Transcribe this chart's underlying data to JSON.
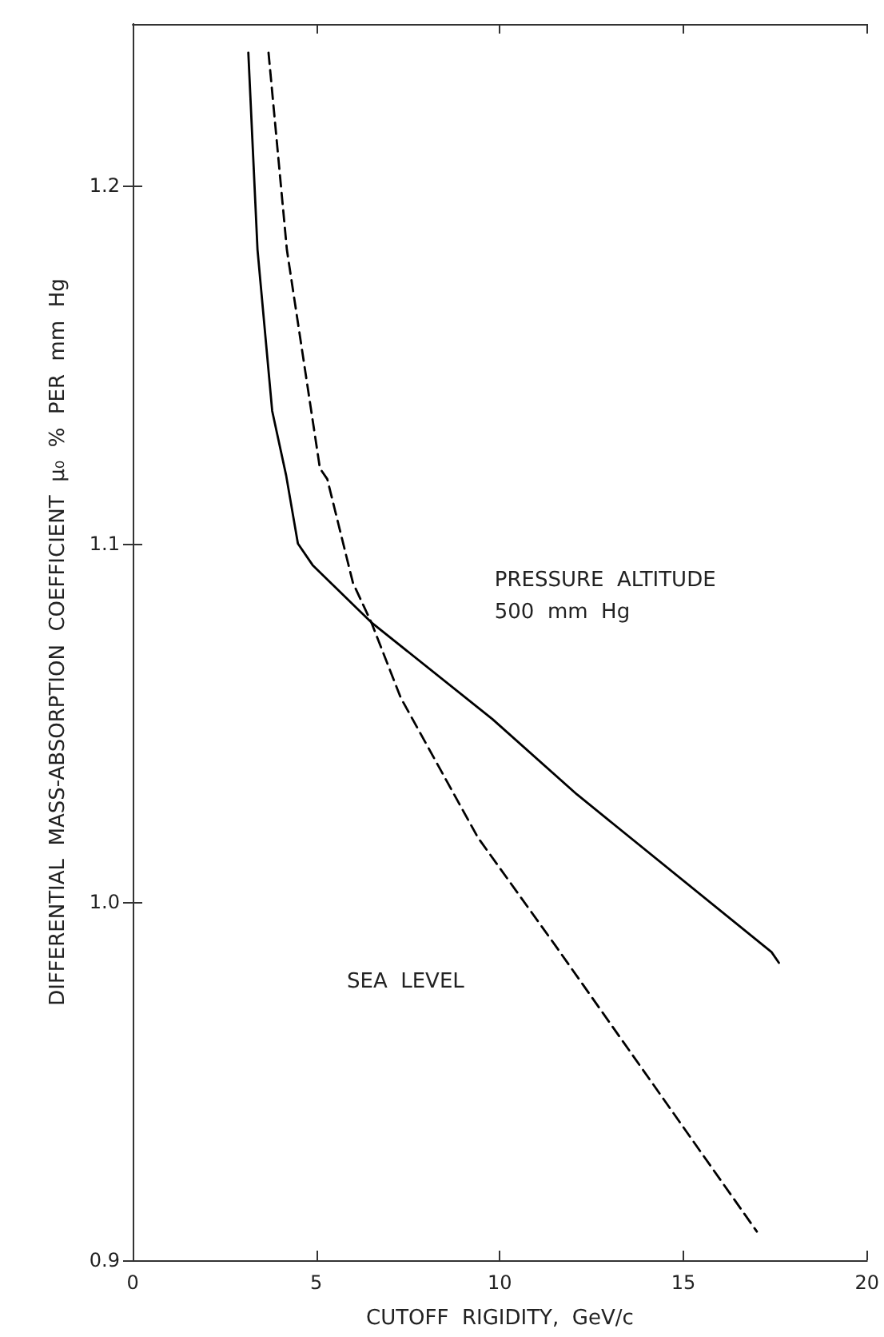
{
  "chart_data": {
    "type": "line",
    "xlabel": "CUTOFF  RIGIDITY,  GeV/c",
    "ylabel": "DIFFERENTIAL  MASS-ABSORPTION  COEFFICIENT  μ₀  %  PER  mm  Hg",
    "xlim": [
      0,
      20
    ],
    "xticks": [
      0,
      5,
      10,
      15,
      20
    ],
    "ylim": [
      0.9,
      1.245
    ],
    "yticks": [
      {
        "value": 0.9,
        "label": "0.9"
      },
      {
        "value": 1.0,
        "label": "1.0"
      },
      {
        "value": 1.1,
        "label": "1.1"
      },
      {
        "value": 1.2,
        "label": "1.2"
      }
    ],
    "grid": false,
    "marker": "none",
    "series": [
      {
        "color": "#000000",
        "line_style": "solid",
        "x": [
          3.15,
          3.4,
          3.8,
          4.18,
          4.5,
          4.9,
          6.5,
          9.8,
          12.1,
          17.4,
          17.6
        ],
        "values": [
          1.237,
          1.182,
          1.137,
          1.119,
          1.1,
          1.094,
          1.078,
          1.051,
          1.03,
          0.986,
          0.983
        ]
      },
      {
        "color": "#000000",
        "line_style": "dashed",
        "x": [
          3.7,
          4.2,
          5.1,
          5.3,
          6.0,
          6.5,
          7.3,
          9.4,
          11.5,
          17.0
        ],
        "values": [
          1.237,
          1.182,
          1.121,
          1.118,
          1.089,
          1.078,
          1.057,
          1.018,
          0.988,
          0.908
        ]
      }
    ],
    "annotations": [
      "PRESSURE  ALTITUDE\n500  mm  Hg",
      "SEA  LEVEL"
    ]
  }
}
